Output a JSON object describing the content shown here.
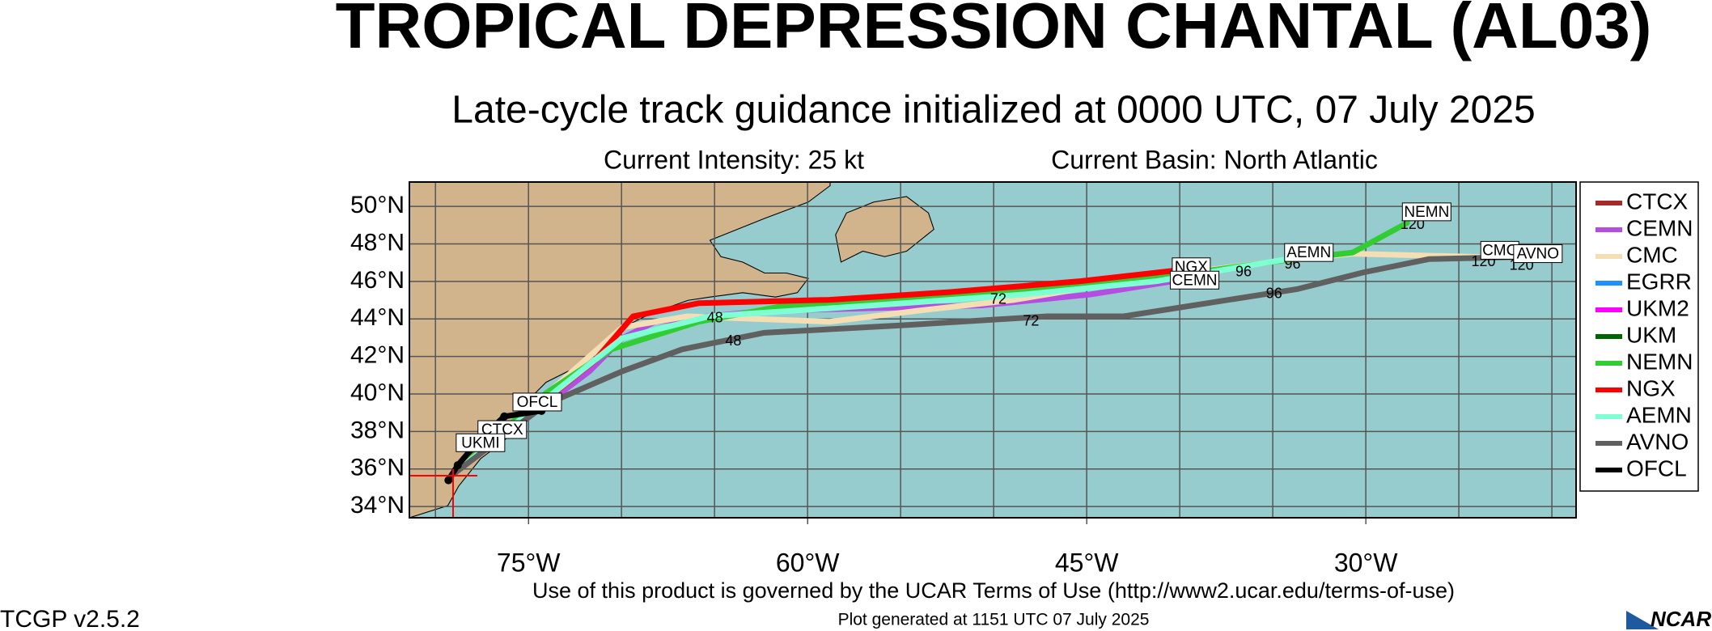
{
  "header": {
    "title": "TROPICAL DEPRESSION CHANTAL (AL03)",
    "subtitle": "Late-cycle track guidance initialized at 0000 UTC, 07 July 2025",
    "intensity": "Current Intensity: 25 kt",
    "basin": "Current Basin: North Atlantic"
  },
  "map": {
    "xlim": [
      -81.4,
      -18.7
    ],
    "ylim": [
      33.4,
      51.3
    ],
    "xgrid_step": 5,
    "xticks": [
      {
        "value": -75,
        "label": "75°W"
      },
      {
        "value": -60,
        "label": "60°W"
      },
      {
        "value": -45,
        "label": "45°W"
      },
      {
        "value": -30,
        "label": "30°W"
      }
    ],
    "yticks": [
      {
        "value": 34,
        "label": "34°N"
      },
      {
        "value": 36,
        "label": "36°N"
      },
      {
        "value": 38,
        "label": "38°N"
      },
      {
        "value": 40,
        "label": "40°N"
      },
      {
        "value": 42,
        "label": "42°N"
      },
      {
        "value": 44,
        "label": "44°N"
      },
      {
        "value": 46,
        "label": "46°N"
      },
      {
        "value": 48,
        "label": "48°N"
      },
      {
        "value": 50,
        "label": "50°N"
      }
    ],
    "tracks": [
      {
        "name": "CTCX",
        "color": "#a52a2a",
        "lon": [
          -79.16,
          -78.16,
          -77.28
        ],
        "lat": [
          35.64,
          36.81,
          37.69
        ]
      },
      {
        "name": "CEMN",
        "color": "#b44ee0",
        "lon": [
          -79.16,
          -71.72,
          -69.96,
          -68.2,
          -62.35,
          -50.63,
          -44.77,
          -40.38
        ],
        "lat": [
          35.64,
          41.21,
          42.97,
          43.85,
          44.43,
          44.72,
          45.31,
          46.01
        ]
      },
      {
        "name": "CMC",
        "color": "#f5deb3",
        "lon": [
          -79.16,
          -74.65,
          -69.96,
          -66.45,
          -58.83,
          -54.14,
          -48.87,
          -41.84,
          -34.81,
          -30.71,
          -23.68
        ],
        "lat": [
          35.64,
          39.45,
          43.55,
          44.14,
          43.85,
          44.43,
          45.02,
          46.19,
          47.07,
          47.48,
          47.3
        ]
      },
      {
        "name": "EGRR",
        "color": "#1e90ff",
        "lon": [],
        "lat": []
      },
      {
        "name": "UKM2",
        "color": "#ff00ff",
        "lon": [
          -79.16,
          -78.3
        ],
        "lat": [
          35.64,
          36.7
        ]
      },
      {
        "name": "UKM",
        "color": "#006400",
        "lon": [
          -79.16,
          -78.46
        ],
        "lat": [
          35.64,
          36.52
        ]
      },
      {
        "name": "NEMN",
        "color": "#32cd32",
        "lon": [
          -79.16,
          -74.06,
          -70.55,
          -65.86,
          -61.17,
          -53.56,
          -47.7,
          -41.26,
          -34.81,
          -30.71,
          -27.78
        ],
        "lat": [
          35.64,
          40.04,
          42.38,
          43.85,
          44.72,
          45.19,
          45.6,
          46.19,
          47.07,
          47.54,
          49.12
        ]
      },
      {
        "name": "NGX",
        "color": "#ff0000",
        "lon": [
          -79.16,
          -71.43,
          -69.38,
          -65.86,
          -58.83,
          -52.39,
          -45.36,
          -40.09
        ],
        "lat": [
          35.64,
          41.79,
          44.14,
          44.84,
          45.02,
          45.43,
          46.01,
          46.6
        ]
      },
      {
        "name": "AEMN",
        "color": "#7fffd4",
        "lon": [
          -79.16,
          -74.06,
          -69.96,
          -65.28,
          -56.49,
          -48.29,
          -41.26,
          -34.23
        ],
        "lat": [
          35.64,
          39.74,
          42.97,
          44.14,
          44.72,
          45.31,
          46.01,
          47.19
        ]
      },
      {
        "name": "AVNO",
        "color": "#606060",
        "lon": [
          -79.16,
          -74.06,
          -69.96,
          -66.74,
          -62.35,
          -54.73,
          -47.11,
          -43.01,
          -33.64,
          -30.13,
          -26.61,
          -21.93
        ],
        "lat": [
          35.64,
          39.45,
          41.21,
          42.38,
          43.26,
          43.67,
          44.14,
          44.14,
          45.6,
          46.48,
          47.19,
          47.3
        ]
      },
      {
        "name": "OFCL",
        "color": "#000000",
        "lon": [
          -79.3,
          -78.8,
          -77.6,
          -76.3,
          -74.3
        ],
        "lat": [
          35.4,
          36.2,
          37.6,
          38.8,
          39.1
        ]
      }
    ],
    "labels": [
      {
        "text": "OFCL",
        "lon": -74.53,
        "lat": 39.57
      },
      {
        "text": "CTCX",
        "lon": -76.41,
        "lat": 38.1
      },
      {
        "text": "UKMI",
        "lon": -77.58,
        "lat": 37.4
      },
      {
        "text": "NGX",
        "lon": -39.38,
        "lat": 46.78
      },
      {
        "text": "CEMN",
        "lon": -39.2,
        "lat": 46.07
      },
      {
        "text": "AEMN",
        "lon": -33.06,
        "lat": 47.54
      },
      {
        "text": "NEMN",
        "lon": -26.73,
        "lat": 49.71
      },
      {
        "text": "CMC",
        "lon": -22.8,
        "lat": 47.66
      },
      {
        "text": "AVNO",
        "lon": -20.75,
        "lat": 47.48
      }
    ],
    "hours": [
      {
        "text": "120",
        "lon": -27.49,
        "lat": 49.0
      },
      {
        "text": "120",
        "lon": -23.68,
        "lat": 47.01
      },
      {
        "text": "120",
        "lon": -21.63,
        "lat": 46.83
      },
      {
        "text": "96",
        "lon": -34.93,
        "lat": 45.31
      },
      {
        "text": "96",
        "lon": -36.57,
        "lat": 46.48
      },
      {
        "text": "96",
        "lon": -33.94,
        "lat": 46.89
      },
      {
        "text": "72",
        "lon": -47.99,
        "lat": 43.85
      },
      {
        "text": "72",
        "lon": -49.75,
        "lat": 45.02
      },
      {
        "text": "48",
        "lon": -63.99,
        "lat": 42.79
      },
      {
        "text": "48",
        "lon": -64.98,
        "lat": 44.02
      }
    ]
  },
  "footer": {
    "terms": "Use of this product is governed by the UCAR Terms of Use (http://www2.ucar.edu/terms-of-use)",
    "generated": "Plot generated at 1151 UTC   07 July 2025",
    "version": "TCGP v2.5.2",
    "logo": "NCAR"
  }
}
